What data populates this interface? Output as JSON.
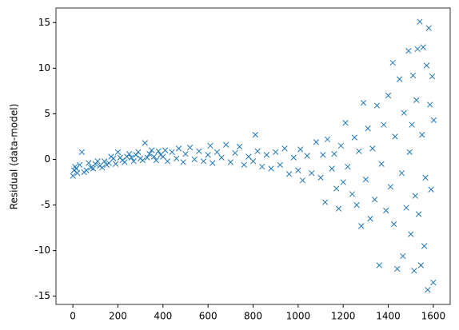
{
  "chart_data": {
    "type": "scatter",
    "y_label": "Residual (data-model)",
    "marker": "x",
    "color": "#1f77b4",
    "grid": false,
    "xlim": [
      -75,
      1675
    ],
    "ylim": [
      -15.9,
      16.6
    ],
    "xticks": [
      0,
      200,
      400,
      600,
      800,
      1000,
      1200,
      1400,
      1600
    ],
    "yticks": [
      -15,
      -10,
      -5,
      0,
      5,
      10,
      15
    ],
    "x": [
      0,
      5,
      10,
      15,
      20,
      30,
      40,
      50,
      60,
      70,
      80,
      90,
      100,
      110,
      120,
      130,
      140,
      150,
      160,
      170,
      180,
      190,
      200,
      210,
      220,
      230,
      240,
      250,
      260,
      270,
      280,
      290,
      300,
      310,
      320,
      330,
      340,
      350,
      360,
      370,
      380,
      390,
      400,
      410,
      420,
      440,
      460,
      470,
      490,
      500,
      520,
      540,
      560,
      580,
      600,
      610,
      620,
      640,
      660,
      680,
      700,
      720,
      740,
      760,
      780,
      800,
      810,
      820,
      840,
      860,
      880,
      900,
      920,
      940,
      960,
      980,
      1000,
      1010,
      1020,
      1040,
      1060,
      1080,
      1100,
      1110,
      1120,
      1130,
      1150,
      1160,
      1170,
      1180,
      1190,
      1200,
      1210,
      1220,
      1240,
      1250,
      1260,
      1270,
      1280,
      1290,
      1300,
      1310,
      1320,
      1330,
      1340,
      1350,
      1360,
      1370,
      1380,
      1390,
      1400,
      1410,
      1420,
      1425,
      1430,
      1440,
      1450,
      1460,
      1465,
      1470,
      1480,
      1490,
      1495,
      1500,
      1505,
      1510,
      1515,
      1520,
      1525,
      1530,
      1535,
      1540,
      1545,
      1550,
      1555,
      1560,
      1565,
      1570,
      1575,
      1580,
      1585,
      1590,
      1595,
      1600,
      1602
    ],
    "y": [
      -1.8,
      -1.2,
      -0.8,
      -1.0,
      -1.5,
      -0.6,
      0.8,
      -1.4,
      -1.2,
      -0.4,
      -0.9,
      -1.0,
      -0.5,
      -0.2,
      -0.7,
      -0.9,
      -0.2,
      -0.6,
      -0.4,
      0.3,
      0.1,
      -0.5,
      0.8,
      0.2,
      -0.1,
      -0.3,
      0.3,
      0.6,
      0.2,
      -0.2,
      0.5,
      0.8,
      0.1,
      -0.1,
      1.8,
      0.2,
      0.6,
      1.0,
      0.3,
      -0.1,
      0.9,
      0.5,
      0.3,
      1.0,
      -0.2,
      0.8,
      0.1,
      1.2,
      -0.3,
      0.6,
      1.3,
      0.0,
      0.9,
      -0.2,
      0.5,
      1.5,
      -0.4,
      0.8,
      0.2,
      1.6,
      -0.3,
      0.7,
      1.4,
      -0.6,
      0.3,
      -0.2,
      2.7,
      0.9,
      -0.8,
      0.5,
      -1.0,
      0.8,
      -0.6,
      1.2,
      -1.6,
      0.2,
      -1.2,
      1.1,
      -2.3,
      0.4,
      -1.5,
      1.9,
      -2.0,
      0.5,
      -4.7,
      2.2,
      -1.0,
      0.6,
      -3.2,
      -5.4,
      1.5,
      -2.5,
      4.0,
      -0.8,
      -3.8,
      2.4,
      -5.0,
      0.9,
      -7.3,
      6.2,
      -2.2,
      3.4,
      -6.5,
      1.2,
      -4.4,
      5.9,
      -11.6,
      -0.5,
      3.8,
      -5.6,
      7.0,
      -3.0,
      10.6,
      -7.1,
      2.5,
      -12.0,
      8.8,
      -1.5,
      -10.6,
      5.1,
      -5.3,
      11.9,
      0.8,
      -8.2,
      3.8,
      9.2,
      -12.2,
      -4.0,
      6.5,
      12.1,
      -6.0,
      15.1,
      -11.6,
      2.7,
      12.3,
      -9.5,
      -2.0,
      10.3,
      -14.3,
      14.4,
      6.0,
      -3.3,
      9.1,
      -13.5,
      4.3
    ]
  }
}
